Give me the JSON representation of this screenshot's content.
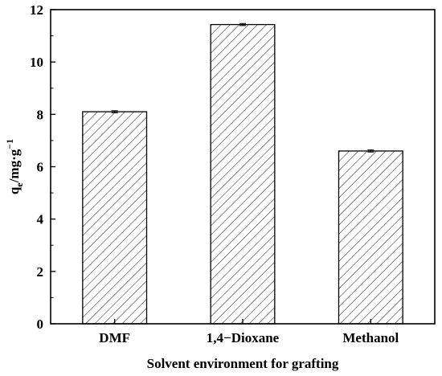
{
  "chart_data": {
    "type": "bar",
    "categories": [
      "DMF",
      "1,4−Dioxane",
      "Methanol"
    ],
    "values": [
      8.1,
      11.43,
      6.6
    ],
    "errors": [
      0.04,
      0.04,
      0.04
    ],
    "xlabel": "Solvent environment for grafting",
    "ylabel": {
      "base": "q",
      "sub": "e",
      "unit": "/mg·g",
      "sup": "−1"
    },
    "ylim": [
      0,
      12
    ],
    "yticks": [
      0,
      2,
      4,
      6,
      8,
      10,
      12
    ],
    "grid": false,
    "legend": "none",
    "bar_fill": "hatched",
    "colors": {
      "bar_stroke": "#000000",
      "hatch": "#000000",
      "background": "#ffffff"
    }
  }
}
